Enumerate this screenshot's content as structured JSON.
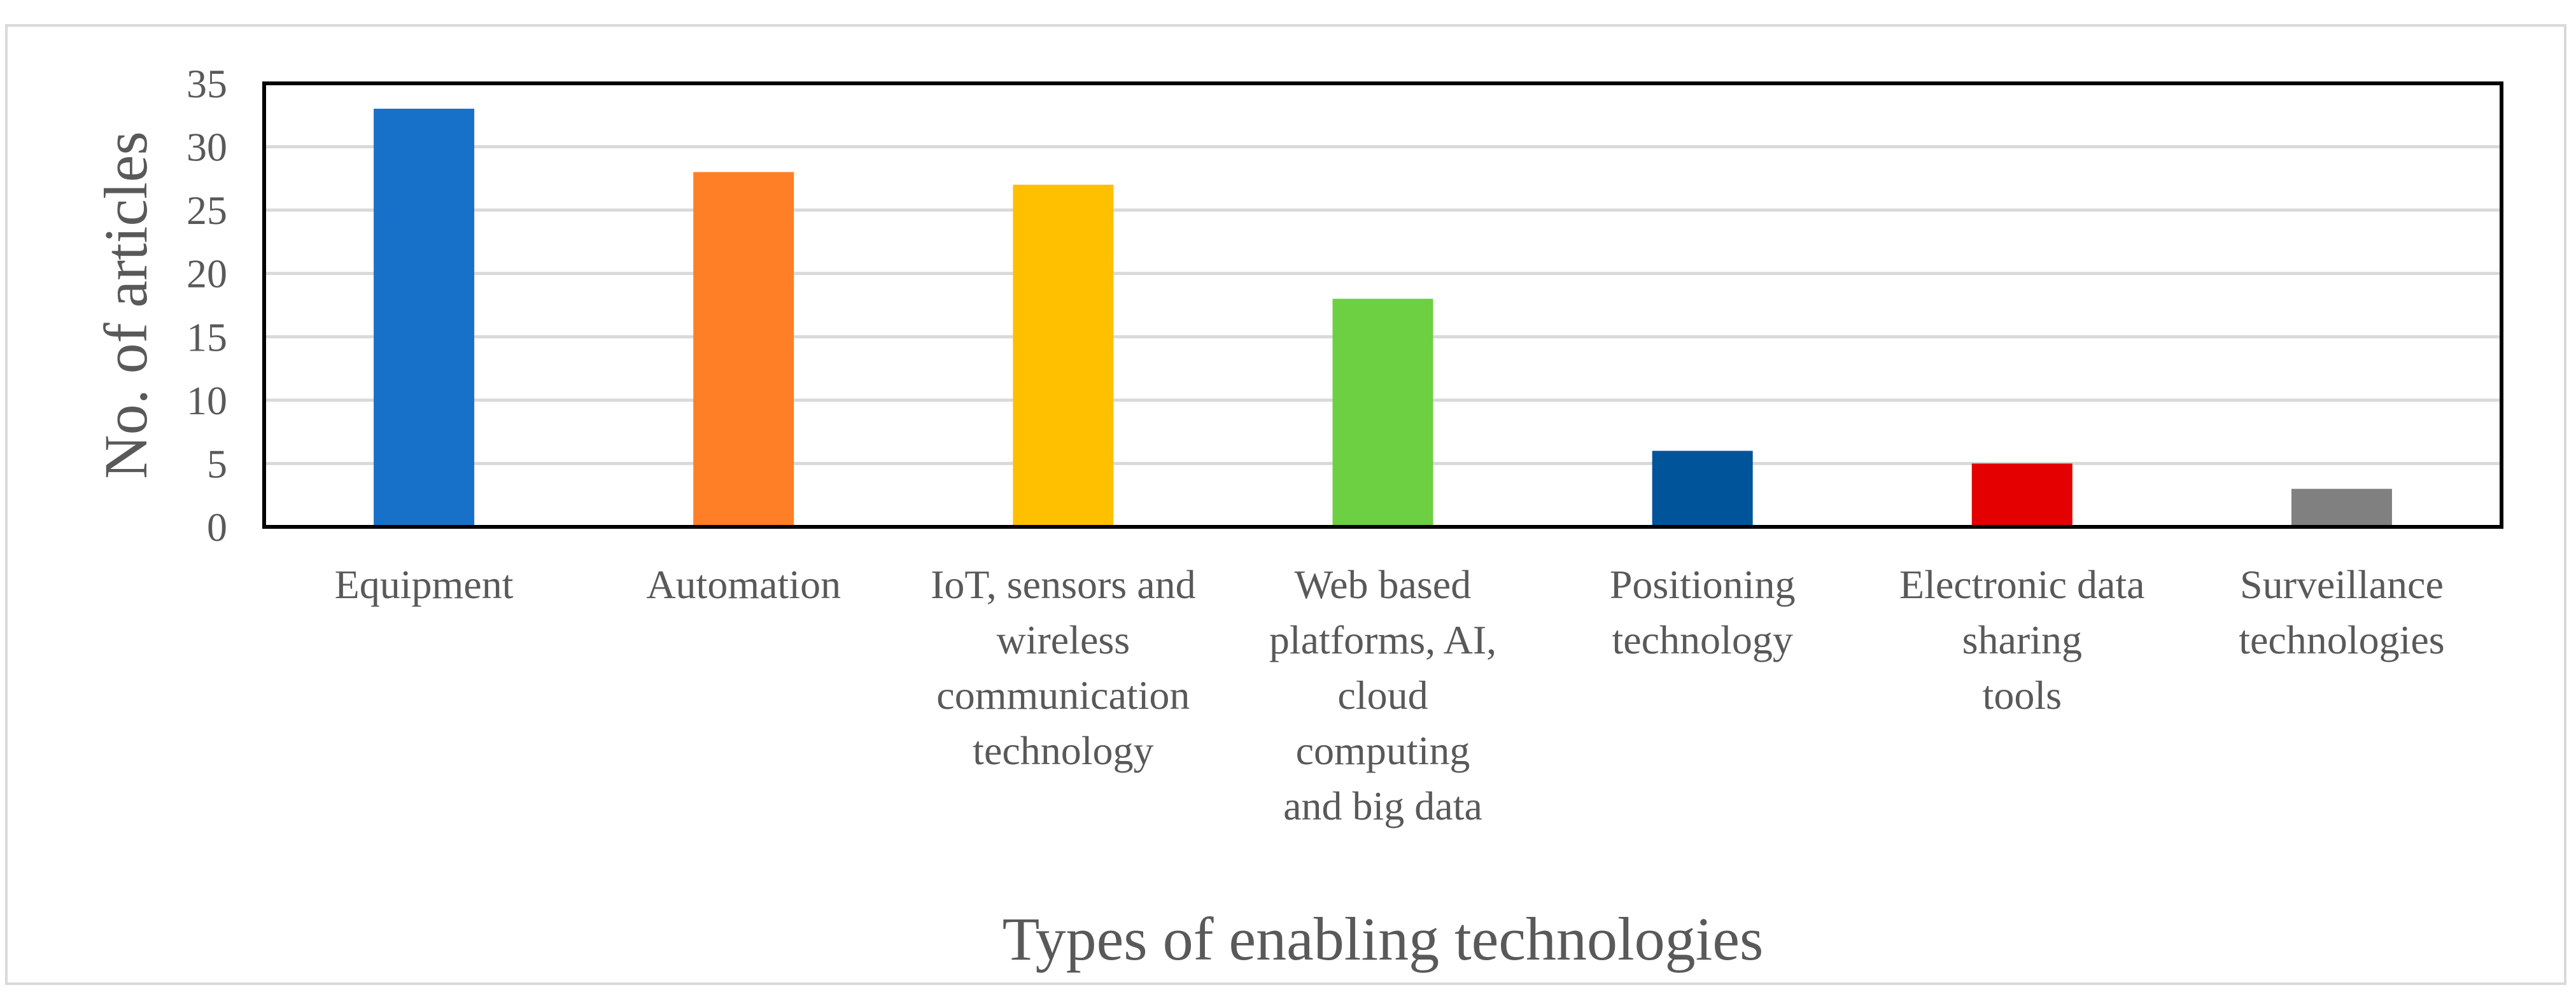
{
  "chart_data": {
    "type": "bar",
    "title": "",
    "xlabel": "Types of enabling technologies",
    "ylabel": "No. of articles",
    "ylim": [
      0,
      35
    ],
    "yticks": [
      0,
      5,
      10,
      15,
      20,
      25,
      30,
      35
    ],
    "grid": true,
    "legend": "none",
    "categories": [
      [
        "Equipment"
      ],
      [
        "Automation"
      ],
      [
        "IoT, sensors and",
        "wireless",
        "communication",
        "technology"
      ],
      [
        "Web based",
        "platforms, AI,",
        "cloud",
        "computing",
        "and big data"
      ],
      [
        "Positioning",
        "technology"
      ],
      [
        "Electronic data",
        "sharing",
        "tools"
      ],
      [
        "Surveillance",
        "technologies"
      ]
    ],
    "values": [
      33,
      28,
      27,
      18,
      6,
      5,
      3
    ],
    "colors": [
      "#1871C9",
      "#FF7F27",
      "#FFC000",
      "#6CD042",
      "#00549A",
      "#E40000",
      "#808080"
    ]
  }
}
